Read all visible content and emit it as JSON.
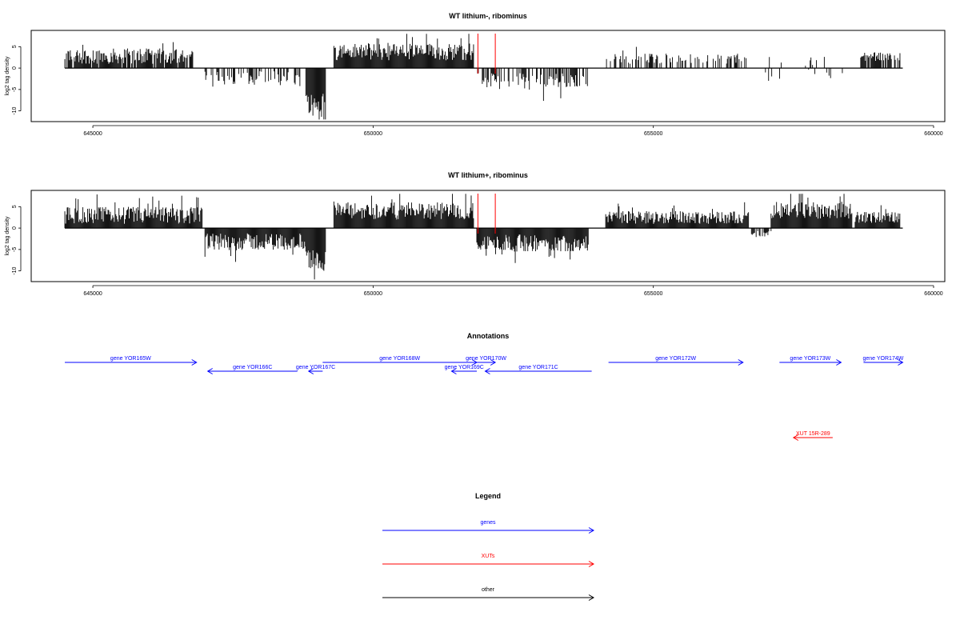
{
  "chart_data": [
    {
      "type": "bar",
      "title": "WT lithium-, ribominus",
      "ylabel": "log2 tag density",
      "xlabel": "",
      "xlim": [
        643900,
        660200
      ],
      "ylim": [
        -12.5,
        8.8
      ],
      "y_ticks": [
        5,
        0,
        -5,
        -10
      ],
      "x_ticks": [
        645000,
        650000,
        655000,
        660000
      ],
      "x_tick_labels": [
        "645000",
        "650000",
        "655000",
        "660000"
      ],
      "markers": [
        651870,
        652180
      ],
      "marker_color": "#ff0000",
      "segments": [
        {
          "start": 644500,
          "end": 646800,
          "strand": "+",
          "mean": 2.8,
          "amp": 1.8,
          "density": 0.85
        },
        {
          "start": 647000,
          "end": 648700,
          "strand": "-",
          "mean": -2.5,
          "amp": 1.8,
          "density": 0.5
        },
        {
          "start": 648800,
          "end": 649150,
          "strand": "-",
          "mean": -8.0,
          "amp": 2.5,
          "density": 1.0
        },
        {
          "start": 649300,
          "end": 651800,
          "strand": "+",
          "mean": 3.8,
          "amp": 2.0,
          "density": 1.0
        },
        {
          "start": 651850,
          "end": 653850,
          "strand": "-",
          "mean": -3.0,
          "amp": 1.8,
          "density": 0.55
        },
        {
          "start": 654150,
          "end": 656700,
          "strand": "+",
          "mean": 2.2,
          "amp": 1.2,
          "density": 0.4
        },
        {
          "start": 657000,
          "end": 658400,
          "strand": "mixed",
          "mean": 1.5,
          "amp": 1.5,
          "density": 0.15
        },
        {
          "start": 658700,
          "end": 659400,
          "strand": "+",
          "mean": 2.7,
          "amp": 1.0,
          "density": 0.8
        }
      ]
    },
    {
      "type": "bar",
      "title": "WT lithium+, ribominus",
      "ylabel": "log2 tag density",
      "xlabel": "",
      "xlim": [
        643900,
        660200
      ],
      "ylim": [
        -12.5,
        8.8
      ],
      "y_ticks": [
        5,
        0,
        -5,
        -10
      ],
      "x_ticks": [
        645000,
        650000,
        655000,
        660000
      ],
      "x_tick_labels": [
        "645000",
        "650000",
        "655000",
        "660000"
      ],
      "markers": [
        651870,
        652180
      ],
      "marker_color": "#ff0000",
      "segments": [
        {
          "start": 644500,
          "end": 646950,
          "strand": "+",
          "mean": 3.0,
          "amp": 2.0,
          "density": 1.0
        },
        {
          "start": 647000,
          "end": 648800,
          "strand": "-",
          "mean": -3.2,
          "amp": 2.0,
          "density": 1.0
        },
        {
          "start": 648800,
          "end": 649150,
          "strand": "-",
          "mean": -7.5,
          "amp": 2.5,
          "density": 1.0
        },
        {
          "start": 649300,
          "end": 651800,
          "strand": "+",
          "mean": 4.0,
          "amp": 2.0,
          "density": 1.0
        },
        {
          "start": 651850,
          "end": 653850,
          "strand": "-",
          "mean": -3.5,
          "amp": 2.0,
          "density": 1.0
        },
        {
          "start": 654150,
          "end": 656700,
          "strand": "+",
          "mean": 2.5,
          "amp": 1.5,
          "density": 1.0
        },
        {
          "start": 656750,
          "end": 657100,
          "strand": "-",
          "mean": -1.5,
          "amp": 0.8,
          "density": 0.6
        },
        {
          "start": 657100,
          "end": 658550,
          "strand": "+",
          "mean": 4.2,
          "amp": 2.0,
          "density": 1.0
        },
        {
          "start": 658600,
          "end": 659400,
          "strand": "+",
          "mean": 2.5,
          "amp": 1.3,
          "density": 1.0
        }
      ]
    }
  ],
  "annotations": {
    "title": "Annotations",
    "genes": [
      {
        "label": "gene YOR165W",
        "start": 644500,
        "end": 646850,
        "strand": "+",
        "row": 0
      },
      {
        "label": "gene YOR166C",
        "start": 647050,
        "end": 648650,
        "strand": "-",
        "row": 1
      },
      {
        "label": "gene YOR167C",
        "start": 648850,
        "end": 649100,
        "strand": "-",
        "row": 1
      },
      {
        "label": "gene YOR168W",
        "start": 649100,
        "end": 651850,
        "strand": "+",
        "row": 0
      },
      {
        "label": "gene YOR169C",
        "start": 651400,
        "end": 651850,
        "strand": "-",
        "row": 1
      },
      {
        "label": "gene YOR170W",
        "start": 651850,
        "end": 652180,
        "strand": "+",
        "row": 0
      },
      {
        "label": "gene YOR171C",
        "start": 652000,
        "end": 653900,
        "strand": "-",
        "row": 1
      },
      {
        "label": "gene YOR172W",
        "start": 654200,
        "end": 656600,
        "strand": "+",
        "row": 0
      },
      {
        "label": "gene YOR173W",
        "start": 657250,
        "end": 658350,
        "strand": "+",
        "row": 0
      },
      {
        "label": "gene YOR174W",
        "start": 658750,
        "end": 659450,
        "strand": "+",
        "row": 0
      }
    ],
    "xuts": [
      {
        "label": "XUT 15R-289",
        "start": 657500,
        "end": 658200,
        "strand": "-"
      }
    ]
  },
  "legend": {
    "title": "Legend",
    "items": [
      {
        "label": "genes",
        "color": "#0000ff"
      },
      {
        "label": "XUTs",
        "color": "#ff0000"
      },
      {
        "label": "other",
        "color": "#000000"
      }
    ]
  },
  "colors": {
    "gene": "#0000ff",
    "xut": "#ff0000",
    "bars": "#000000"
  }
}
